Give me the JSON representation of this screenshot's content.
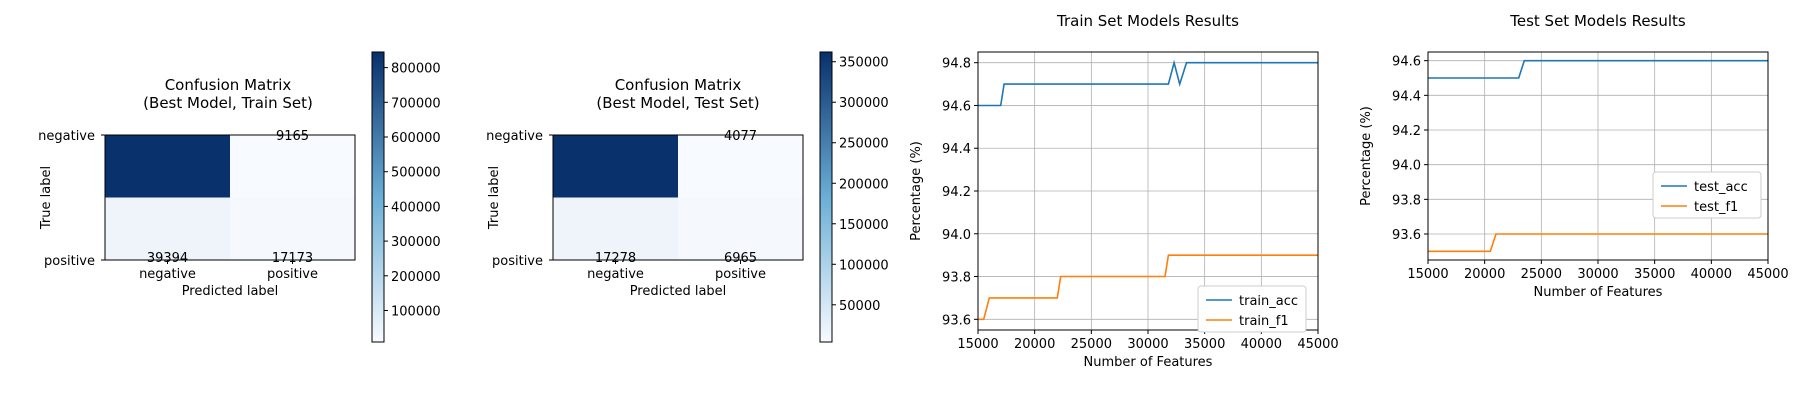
{
  "chart_data": [
    {
      "type": "heatmap",
      "title": "Confusion Matrix\n(Best Model, Train Set)",
      "xlabel": "Predicted label",
      "ylabel": "True label",
      "x_categories": [
        "negative",
        "positive"
      ],
      "y_categories": [
        "negative",
        "positive"
      ],
      "cell_labels": [
        [
          "",
          "9165"
        ],
        [
          "39394",
          "17173"
        ]
      ],
      "shade_levels": [
        [
          840000,
          9165
        ],
        [
          39394,
          17173
        ]
      ],
      "colormap": {
        "low": "#f7fbff",
        "high": "#08306b"
      },
      "colorbar": {
        "range": [
          9165,
          845000
        ],
        "ticks": [
          100000,
          200000,
          300000,
          400000,
          500000,
          600000,
          700000,
          800000
        ],
        "tick_labels": [
          "100000",
          "200000",
          "300000",
          "400000",
          "500000",
          "600000",
          "700000",
          "800000"
        ]
      }
    },
    {
      "type": "heatmap",
      "title": "Confusion Matrix\n(Best Model, Test Set)",
      "xlabel": "Predicted label",
      "ylabel": "True label",
      "x_categories": [
        "negative",
        "positive"
      ],
      "y_categories": [
        "negative",
        "positive"
      ],
      "cell_labels": [
        [
          "",
          "4077"
        ],
        [
          "17278",
          "6965"
        ]
      ],
      "shade_levels": [
        [
          360000,
          4077
        ],
        [
          17278,
          6965
        ]
      ],
      "colormap": {
        "low": "#f7fbff",
        "high": "#08306b"
      },
      "colorbar": {
        "range": [
          4077,
          362000
        ],
        "ticks": [
          50000,
          100000,
          150000,
          200000,
          250000,
          300000,
          350000
        ],
        "tick_labels": [
          "50000",
          "100000",
          "150000",
          "200000",
          "250000",
          "300000",
          "350000"
        ]
      }
    },
    {
      "type": "line",
      "title": "Train Set Models Results",
      "xlabel": "Number of Features",
      "ylabel": "Percentage (%)",
      "xlim": [
        15000,
        45000
      ],
      "ylim": [
        93.55,
        94.85
      ],
      "xticks": [
        15000,
        20000,
        25000,
        30000,
        35000,
        40000,
        45000
      ],
      "yticks": [
        93.6,
        93.8,
        94.0,
        94.2,
        94.4,
        94.6,
        94.8
      ],
      "grid": true,
      "legend": "lower-right",
      "series": [
        {
          "name": "train_acc",
          "color": "#1f77b4",
          "x": [
            15000,
            17000,
            17300,
            31800,
            32300,
            32800,
            33400,
            45000
          ],
          "y": [
            94.6,
            94.6,
            94.7,
            94.7,
            94.8,
            94.7,
            94.8,
            94.8
          ]
        },
        {
          "name": "train_f1",
          "color": "#ff7f0e",
          "x": [
            15000,
            15500,
            16000,
            22000,
            22300,
            31500,
            31800,
            45000
          ],
          "y": [
            93.6,
            93.6,
            93.7,
            93.7,
            93.8,
            93.8,
            93.9,
            93.9
          ]
        }
      ]
    },
    {
      "type": "line",
      "title": "Test Set Models Results",
      "xlabel": "Number of Features",
      "ylabel": "Percentage (%)",
      "xlim": [
        15000,
        45000
      ],
      "ylim": [
        93.45,
        94.65
      ],
      "xticks": [
        15000,
        20000,
        25000,
        30000,
        35000,
        40000,
        45000
      ],
      "yticks": [
        93.6,
        93.8,
        94.0,
        94.2,
        94.4,
        94.6
      ],
      "grid": true,
      "legend": "center-right",
      "series": [
        {
          "name": "test_acc",
          "color": "#1f77b4",
          "x": [
            15000,
            23000,
            23500,
            45000
          ],
          "y": [
            94.5,
            94.5,
            94.6,
            94.6
          ]
        },
        {
          "name": "test_f1",
          "color": "#ff7f0e",
          "x": [
            15000,
            20500,
            21000,
            45000
          ],
          "y": [
            93.5,
            93.5,
            93.6,
            93.6
          ]
        }
      ]
    }
  ]
}
